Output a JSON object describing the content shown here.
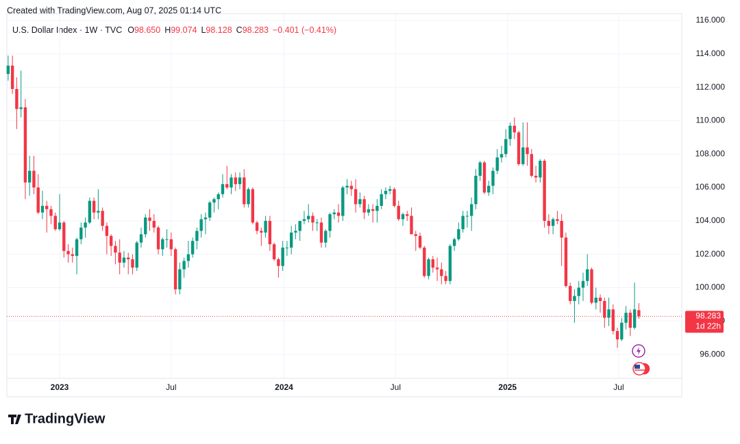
{
  "header": {
    "created": "Created with TradingView.com, Aug 07, 2025 01:14 UTC",
    "brand": "TradingView"
  },
  "chart_data": {
    "type": "candlestick",
    "symbol": "U.S. Dollar Index · 1W · TVC",
    "ohlc_legend": [
      {
        "key": "O",
        "label": "98.650"
      },
      {
        "key": "H",
        "label": "99.074"
      },
      {
        "key": "L",
        "label": "98.128"
      },
      {
        "key": "C",
        "label": "98.283"
      }
    ],
    "change": "−0.401 (−0.41%)",
    "last_price_label": "98.283",
    "countdown": "1d 22h",
    "up_color": "#089981",
    "down_color": "#f23645",
    "ylim": [
      94.57,
      116.41
    ],
    "yticks": [
      {
        "value": 96,
        "label": "96.000"
      },
      {
        "value": 98,
        "label": "98.000"
      },
      {
        "value": 100,
        "label": "100.000"
      },
      {
        "value": 102,
        "label": "102.000"
      },
      {
        "value": 104,
        "label": "104.000"
      },
      {
        "value": 106,
        "label": "106.000"
      },
      {
        "value": 108,
        "label": "108.000"
      },
      {
        "value": 110,
        "label": "110.000"
      },
      {
        "value": 112,
        "label": "112.000"
      },
      {
        "value": 114,
        "label": "114.000"
      },
      {
        "value": 116,
        "label": "116.000"
      }
    ],
    "xlim": [
      -0.3,
      157
    ],
    "xticks": [
      {
        "value": 12,
        "label": "2023"
      },
      {
        "value": 38,
        "label": "Jul"
      },
      {
        "value": 64.3,
        "label": "2024"
      },
      {
        "value": 90.3,
        "label": "Jul"
      },
      {
        "value": 116.4,
        "label": "2025"
      },
      {
        "value": 142.3,
        "label": "Jul"
      }
    ],
    "grid": true,
    "values": [
      [
        112.8,
        113.9,
        112.4,
        113.3
      ],
      [
        113.3,
        113.9,
        111.6,
        111.9
      ],
      [
        111.9,
        112.6,
        109.5,
        110.7
      ],
      [
        110.7,
        113.0,
        110.2,
        110.8
      ],
      [
        110.8,
        111.3,
        105.3,
        106.3
      ],
      [
        106.3,
        107.9,
        105.5,
        107.0
      ],
      [
        107.0,
        107.9,
        105.6,
        106.0
      ],
      [
        106.0,
        106.8,
        104.4,
        104.5
      ],
      [
        104.5,
        105.8,
        104.1,
        104.9
      ],
      [
        104.9,
        105.2,
        103.3,
        104.7
      ],
      [
        104.7,
        104.9,
        103.8,
        104.3
      ],
      [
        104.3,
        104.5,
        103.4,
        103.5
      ],
      [
        103.5,
        105.6,
        103.4,
        103.9
      ],
      [
        103.9,
        104.0,
        101.8,
        102.2
      ],
      [
        102.2,
        102.6,
        101.5,
        102.0
      ],
      [
        102.0,
        102.4,
        101.5,
        101.9
      ],
      [
        101.9,
        103.0,
        100.8,
        102.9
      ],
      [
        102.9,
        103.9,
        102.6,
        103.6
      ],
      [
        103.6,
        104.2,
        103.0,
        103.9
      ],
      [
        103.9,
        105.4,
        103.8,
        105.2
      ],
      [
        105.2,
        105.4,
        104.1,
        104.5
      ],
      [
        104.5,
        105.9,
        104.1,
        104.6
      ],
      [
        104.6,
        104.8,
        103.4,
        103.7
      ],
      [
        103.7,
        103.9,
        102.0,
        103.1
      ],
      [
        103.1,
        103.2,
        101.9,
        102.5
      ],
      [
        102.5,
        102.8,
        101.4,
        102.1
      ],
      [
        102.1,
        102.9,
        100.8,
        101.5
      ],
      [
        101.5,
        102.2,
        101.2,
        101.8
      ],
      [
        101.8,
        102.1,
        100.8,
        101.7
      ],
      [
        101.7,
        102.0,
        100.8,
        101.2
      ],
      [
        101.2,
        102.8,
        101.0,
        102.7
      ],
      [
        102.7,
        103.6,
        102.4,
        103.2
      ],
      [
        103.2,
        104.4,
        103.0,
        104.2
      ],
      [
        104.2,
        104.7,
        103.4,
        104.0
      ],
      [
        104.0,
        104.4,
        103.3,
        103.6
      ],
      [
        103.6,
        103.7,
        102.0,
        102.3
      ],
      [
        102.3,
        103.0,
        101.9,
        102.9
      ],
      [
        102.9,
        103.5,
        102.4,
        102.9
      ],
      [
        102.9,
        103.3,
        101.9,
        102.3
      ],
      [
        102.3,
        102.4,
        99.6,
        99.9
      ],
      [
        99.9,
        101.5,
        99.6,
        101.1
      ],
      [
        101.1,
        101.8,
        100.6,
        101.6
      ],
      [
        101.6,
        102.8,
        101.2,
        102.0
      ],
      [
        102.0,
        103.0,
        101.8,
        102.8
      ],
      [
        102.8,
        103.6,
        102.3,
        103.4
      ],
      [
        103.4,
        104.4,
        103.0,
        104.1
      ],
      [
        104.1,
        104.5,
        103.2,
        104.2
      ],
      [
        104.2,
        105.2,
        104.0,
        105.1
      ],
      [
        105.1,
        105.4,
        104.5,
        105.3
      ],
      [
        105.3,
        105.7,
        104.7,
        105.6
      ],
      [
        105.6,
        106.8,
        105.4,
        106.2
      ],
      [
        106.2,
        107.3,
        105.9,
        106.0
      ],
      [
        106.0,
        106.8,
        105.6,
        106.6
      ],
      [
        106.6,
        106.9,
        105.8,
        106.2
      ],
      [
        106.2,
        106.9,
        105.9,
        106.6
      ],
      [
        106.6,
        107.1,
        104.8,
        105.0
      ],
      [
        105.0,
        106.0,
        104.8,
        105.9
      ],
      [
        105.9,
        106.0,
        103.8,
        103.9
      ],
      [
        103.9,
        104.0,
        103.2,
        103.4
      ],
      [
        103.4,
        103.6,
        102.5,
        103.3
      ],
      [
        103.3,
        104.3,
        103.0,
        104.0
      ],
      [
        104.0,
        104.3,
        102.2,
        102.6
      ],
      [
        102.6,
        102.7,
        101.6,
        101.7
      ],
      [
        101.7,
        101.8,
        100.6,
        101.3
      ],
      [
        101.3,
        102.8,
        101.0,
        102.4
      ],
      [
        102.4,
        102.8,
        101.9,
        102.4
      ],
      [
        102.4,
        103.7,
        102.0,
        103.3
      ],
      [
        103.3,
        103.8,
        102.9,
        103.4
      ],
      [
        103.4,
        104.0,
        102.8,
        104.0
      ],
      [
        104.0,
        104.6,
        103.8,
        104.1
      ],
      [
        104.1,
        105.0,
        103.9,
        104.3
      ],
      [
        104.3,
        104.5,
        103.4,
        103.9
      ],
      [
        103.9,
        104.1,
        103.4,
        103.9
      ],
      [
        103.9,
        104.2,
        102.4,
        102.7
      ],
      [
        102.7,
        103.5,
        102.4,
        103.4
      ],
      [
        103.4,
        104.5,
        103.0,
        104.4
      ],
      [
        104.4,
        104.7,
        104.1,
        104.5
      ],
      [
        104.5,
        105.0,
        103.9,
        104.3
      ],
      [
        104.3,
        106.1,
        104.0,
        106.0
      ],
      [
        106.0,
        106.5,
        105.6,
        106.1
      ],
      [
        106.1,
        106.4,
        105.5,
        105.9
      ],
      [
        105.9,
        106.5,
        104.5,
        105.0
      ],
      [
        105.0,
        105.7,
        104.8,
        105.3
      ],
      [
        105.3,
        105.5,
        104.1,
        104.5
      ],
      [
        104.5,
        105.0,
        104.3,
        104.7
      ],
      [
        104.7,
        105.0,
        103.9,
        104.6
      ],
      [
        104.6,
        105.3,
        103.9,
        104.9
      ],
      [
        104.9,
        105.9,
        104.7,
        105.6
      ],
      [
        105.6,
        106.0,
        105.3,
        105.8
      ],
      [
        105.8,
        106.1,
        105.6,
        105.9
      ],
      [
        105.9,
        106.0,
        104.8,
        104.9
      ],
      [
        104.9,
        105.2,
        104.0,
        104.1
      ],
      [
        104.1,
        104.5,
        103.7,
        104.4
      ],
      [
        104.4,
        104.6,
        104.0,
        104.3
      ],
      [
        104.3,
        104.8,
        103.2,
        103.2
      ],
      [
        103.2,
        103.4,
        102.2,
        103.1
      ],
      [
        103.1,
        103.3,
        102.3,
        102.4
      ],
      [
        102.4,
        102.5,
        100.6,
        100.7
      ],
      [
        100.7,
        101.8,
        100.5,
        101.7
      ],
      [
        101.7,
        101.9,
        100.9,
        101.2
      ],
      [
        101.2,
        101.8,
        100.4,
        101.1
      ],
      [
        101.1,
        101.5,
        100.2,
        100.7
      ],
      [
        100.7,
        101.0,
        100.2,
        100.4
      ],
      [
        100.4,
        102.6,
        100.2,
        102.5
      ],
      [
        102.5,
        103.0,
        102.2,
        102.9
      ],
      [
        102.9,
        103.9,
        102.8,
        103.5
      ],
      [
        103.5,
        104.6,
        103.3,
        104.3
      ],
      [
        104.3,
        104.6,
        103.6,
        104.3
      ],
      [
        104.3,
        105.4,
        103.4,
        105.0
      ],
      [
        105.0,
        107.1,
        104.7,
        106.7
      ],
      [
        106.7,
        107.6,
        106.4,
        107.5
      ],
      [
        107.5,
        107.6,
        105.6,
        105.7
      ],
      [
        105.7,
        106.4,
        105.5,
        106.1
      ],
      [
        106.1,
        107.2,
        105.6,
        107.0
      ],
      [
        107.0,
        108.3,
        106.8,
        107.8
      ],
      [
        107.8,
        108.5,
        107.5,
        108.0
      ],
      [
        108.0,
        109.5,
        107.8,
        108.9
      ],
      [
        108.9,
        109.9,
        108.5,
        109.7
      ],
      [
        109.7,
        110.2,
        108.9,
        109.3
      ],
      [
        109.3,
        109.4,
        107.3,
        107.4
      ],
      [
        107.4,
        109.9,
        107.3,
        108.4
      ],
      [
        108.4,
        109.9,
        107.3,
        108.0
      ],
      [
        108.0,
        108.3,
        106.6,
        106.7
      ],
      [
        106.7,
        107.3,
        106.3,
        106.6
      ],
      [
        106.6,
        107.7,
        106.3,
        107.6
      ],
      [
        107.6,
        107.7,
        103.6,
        104.0
      ],
      [
        104.0,
        104.4,
        103.2,
        103.7
      ],
      [
        103.7,
        104.2,
        103.2,
        104.1
      ],
      [
        104.1,
        104.6,
        103.8,
        104.0
      ],
      [
        104.0,
        104.4,
        101.3,
        103.0
      ],
      [
        103.0,
        103.3,
        100.0,
        100.1
      ],
      [
        100.1,
        100.3,
        99.0,
        99.2
      ],
      [
        99.2,
        99.9,
        97.9,
        99.5
      ],
      [
        99.5,
        100.4,
        99.0,
        100.0
      ],
      [
        100.0,
        100.9,
        99.2,
        100.4
      ],
      [
        100.4,
        102.0,
        100.1,
        101.1
      ],
      [
        101.1,
        101.2,
        99.0,
        99.1
      ],
      [
        99.1,
        100.0,
        98.7,
        99.4
      ],
      [
        99.4,
        99.6,
        98.5,
        99.2
      ],
      [
        99.2,
        99.4,
        97.6,
        98.2
      ],
      [
        98.2,
        99.4,
        97.7,
        98.7
      ],
      [
        98.7,
        99.0,
        97.2,
        97.4
      ],
      [
        97.4,
        97.6,
        96.4,
        96.9
      ],
      [
        96.9,
        98.2,
        96.8,
        97.9
      ],
      [
        97.9,
        98.9,
        97.5,
        98.5
      ],
      [
        98.5,
        98.7,
        97.1,
        97.6
      ],
      [
        97.6,
        100.3,
        97.5,
        98.7
      ],
      [
        98.65,
        99.074,
        98.128,
        98.283
      ]
    ]
  }
}
